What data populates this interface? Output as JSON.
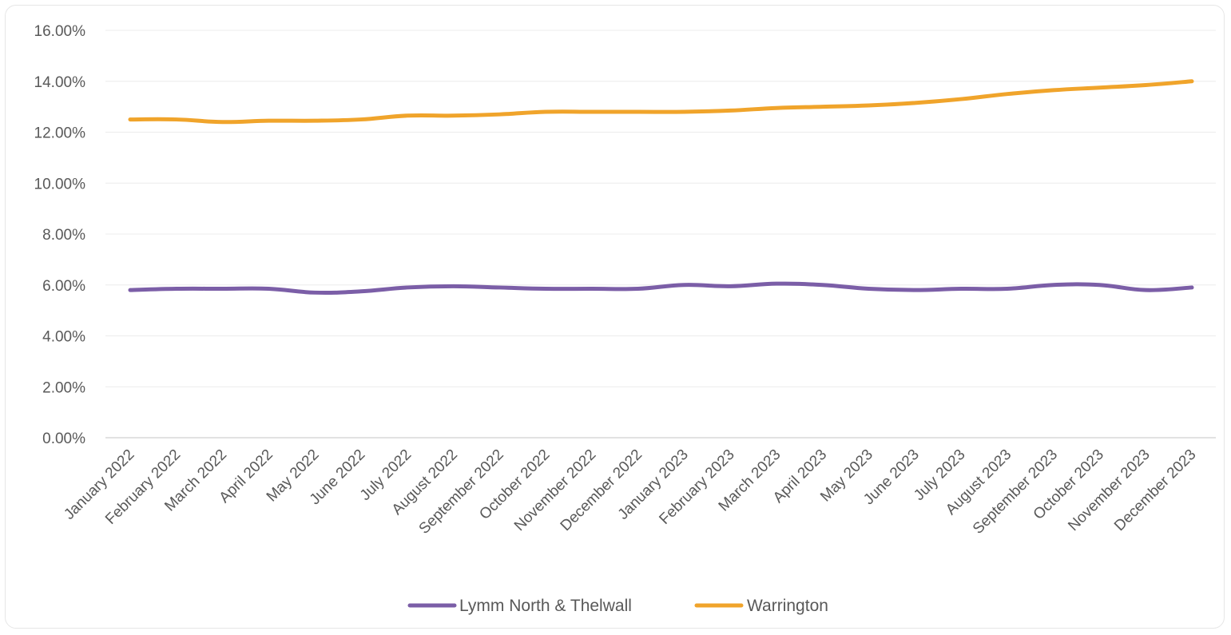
{
  "chart_data": {
    "type": "line",
    "title": "",
    "xlabel": "",
    "ylabel": "",
    "ylim": [
      0,
      16
    ],
    "y_ticks": [
      0,
      2,
      4,
      6,
      8,
      10,
      12,
      14,
      16
    ],
    "y_tick_labels": [
      "0.00%",
      "2.00%",
      "4.00%",
      "6.00%",
      "8.00%",
      "10.00%",
      "12.00%",
      "14.00%",
      "16.00%"
    ],
    "categories": [
      "January 2022",
      "February 2022",
      "March 2022",
      "April 2022",
      "May 2022",
      "June 2022",
      "July 2022",
      "August 2022",
      "September 2022",
      "October 2022",
      "November 2022",
      "December 2022",
      "January 2023",
      "February 2023",
      "March 2023",
      "April 2023",
      "May 2023",
      "June 2023",
      "July 2023",
      "August 2023",
      "September 2023",
      "October 2023",
      "November 2023",
      "December 2023"
    ],
    "grid": true,
    "legend_position": "bottom",
    "series": [
      {
        "name": "Lymm North & Thelwall",
        "color": "#7b5ea7",
        "values": [
          5.8,
          5.85,
          5.85,
          5.85,
          5.7,
          5.75,
          5.9,
          5.95,
          5.9,
          5.85,
          5.85,
          5.85,
          6.0,
          5.95,
          6.05,
          6.0,
          5.85,
          5.8,
          5.85,
          5.85,
          6.0,
          6.0,
          5.8,
          5.9
        ]
      },
      {
        "name": "Warrington",
        "color": "#f0a42b",
        "values": [
          12.5,
          12.5,
          12.4,
          12.45,
          12.45,
          12.5,
          12.65,
          12.65,
          12.7,
          12.8,
          12.8,
          12.8,
          12.8,
          12.85,
          12.95,
          13.0,
          13.05,
          13.15,
          13.3,
          13.5,
          13.65,
          13.75,
          13.85,
          14.0
        ]
      }
    ]
  }
}
